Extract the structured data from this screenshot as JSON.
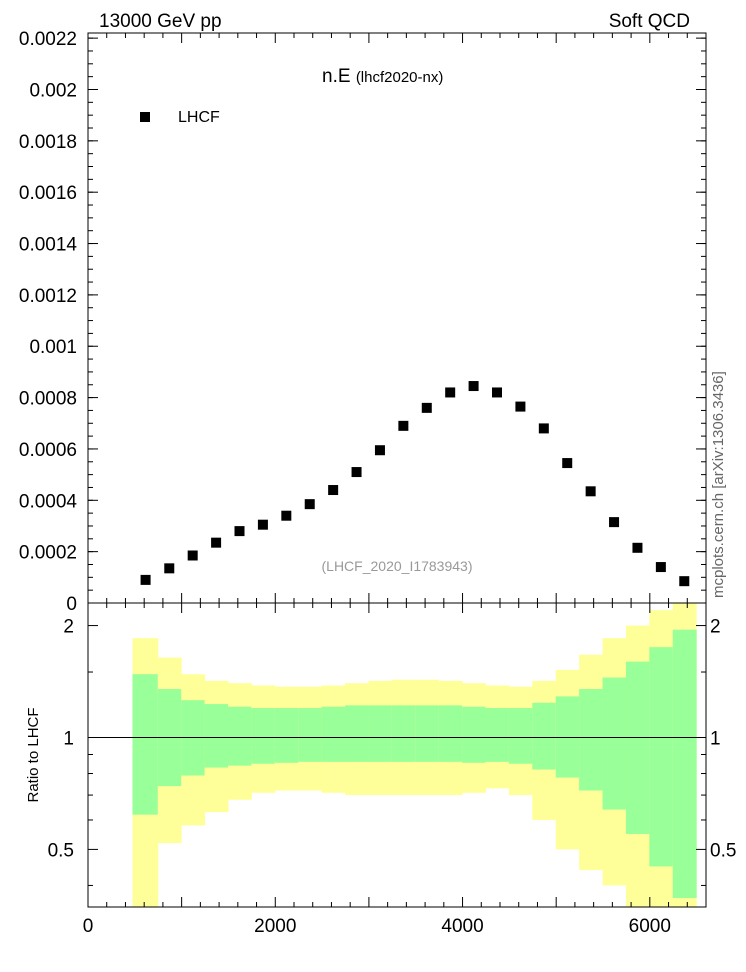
{
  "header": {
    "left": "13000 GeV pp",
    "right": "Soft QCD",
    "side": "mcplots.cern.ch [arXiv:1306.3436]"
  },
  "chart_data": {
    "type": "scatter",
    "title_main": "n.E",
    "title_sub": "(lhcf2020-nx)",
    "legend": "LHCF",
    "reference": "(LHCF_2020_I1783943)",
    "ratio_ylabel": "Ratio to LHCF",
    "main_ylim": [
      0,
      0.00222
    ],
    "main_yticks": [
      0,
      0.0002,
      0.0004,
      0.0006,
      0.0008,
      0.001,
      0.0012,
      0.0014,
      0.0016,
      0.0018,
      0.002,
      0.0022
    ],
    "main_ytick_labels": [
      "0",
      "0.0002",
      "0.0004",
      "0.0006",
      "0.0008",
      "0.001",
      "0.0012",
      "0.0014",
      "0.0016",
      "0.0018",
      "0.002",
      "0.0022"
    ],
    "xlim": [
      0,
      6600
    ],
    "xticks": [
      0,
      2000,
      4000,
      6000
    ],
    "xtick_labels": [
      "0",
      "2000",
      "4000",
      "6000"
    ],
    "ratio_ylim": [
      0.35,
      2.3
    ],
    "ratio_log": true,
    "ratio_yticks": [
      0.5,
      1,
      2
    ],
    "ratio_ytick_labels": [
      "0.5",
      "1",
      "2"
    ],
    "series": [
      {
        "name": "LHCF",
        "x": [
          615,
          868,
          1118,
          1368,
          1618,
          1868,
          2118,
          2368,
          2618,
          2868,
          3118,
          3368,
          3618,
          3868,
          4118,
          4368,
          4618,
          4868,
          5118,
          5368,
          5618,
          5868,
          6118,
          6368
        ],
        "y": [
          9e-05,
          0.000135,
          0.000185,
          0.000235,
          0.00028,
          0.000305,
          0.00034,
          0.000385,
          0.00044,
          0.00051,
          0.000595,
          0.00069,
          0.00076,
          0.00082,
          0.000845,
          0.00082,
          0.000765,
          0.00068,
          0.000545,
          0.000435,
          0.000315,
          0.000215,
          0.00014,
          8.5e-05
        ]
      }
    ],
    "ratio_bands": {
      "edges": [
        475,
        745,
        995,
        1245,
        1495,
        1745,
        1995,
        2245,
        2495,
        2745,
        2995,
        3245,
        3495,
        3745,
        3995,
        4245,
        4495,
        4745,
        4995,
        5245,
        5495,
        5745,
        5995,
        6245,
        6495
      ],
      "stat_low": [
        0.62,
        0.74,
        0.79,
        0.83,
        0.84,
        0.85,
        0.855,
        0.86,
        0.86,
        0.86,
        0.86,
        0.86,
        0.86,
        0.86,
        0.855,
        0.86,
        0.85,
        0.82,
        0.78,
        0.72,
        0.64,
        0.55,
        0.45,
        0.37
      ],
      "stat_high": [
        1.48,
        1.35,
        1.26,
        1.23,
        1.21,
        1.2,
        1.2,
        1.2,
        1.21,
        1.22,
        1.22,
        1.22,
        1.22,
        1.22,
        1.21,
        1.2,
        1.2,
        1.24,
        1.29,
        1.35,
        1.45,
        1.6,
        1.75,
        1.95
      ],
      "total_low": [
        0.35,
        0.52,
        0.58,
        0.63,
        0.68,
        0.71,
        0.72,
        0.72,
        0.71,
        0.7,
        0.7,
        0.7,
        0.7,
        0.7,
        0.71,
        0.73,
        0.7,
        0.6,
        0.5,
        0.44,
        0.4,
        0.35,
        0.35,
        0.35
      ],
      "total_high": [
        1.85,
        1.64,
        1.48,
        1.42,
        1.4,
        1.38,
        1.37,
        1.37,
        1.38,
        1.4,
        1.42,
        1.43,
        1.43,
        1.42,
        1.4,
        1.38,
        1.37,
        1.42,
        1.52,
        1.67,
        1.85,
        2.0,
        2.2,
        2.3
      ],
      "colors": {
        "stat": "#99ff99",
        "total": "#ffff99"
      }
    }
  }
}
